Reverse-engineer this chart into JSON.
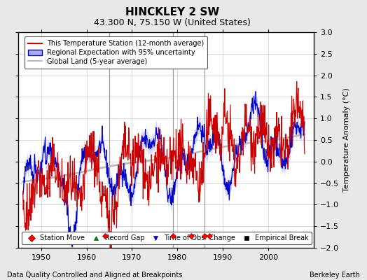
{
  "title": "HINCKLEY 2 SW",
  "subtitle": "43.300 N, 75.150 W (United States)",
  "ylabel": "Temperature Anomaly (°C)",
  "xlabel_left": "Data Quality Controlled and Aligned at Breakpoints",
  "xlabel_right": "Berkeley Earth",
  "xlim": [
    1945,
    2010
  ],
  "ylim": [
    -2,
    3
  ],
  "yticks": [
    -2,
    -1.5,
    -1,
    -0.5,
    0,
    0.5,
    1,
    1.5,
    2,
    2.5,
    3
  ],
  "xticks": [
    1950,
    1960,
    1970,
    1980,
    1990,
    2000
  ],
  "bg_color": "#e8e8e8",
  "plot_bg_color": "#ffffff",
  "grid_color": "#cccccc",
  "station_move_years": [
    1964,
    1979,
    1983,
    1986,
    1987
  ],
  "vertical_lines": [
    1965,
    1979,
    1986
  ],
  "regional_color": "#0000cc",
  "regional_fill_color": "#aaaaee",
  "station_color": "#cc0000",
  "global_color": "#bbbbbb",
  "seed": 42
}
